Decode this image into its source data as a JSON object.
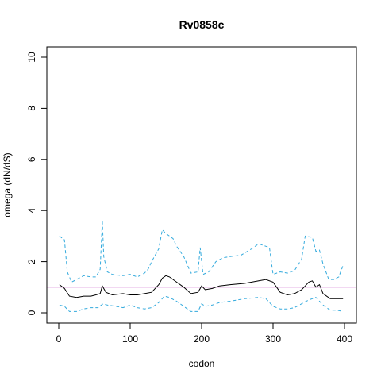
{
  "chart_data": {
    "type": "line",
    "title": "Rv0858c",
    "xlabel": "codon",
    "ylabel": "omega (dN/dS)",
    "xlim": [
      0,
      400
    ],
    "ylim": [
      0,
      10
    ],
    "xticks": [
      0,
      100,
      200,
      300,
      400
    ],
    "yticks": [
      0,
      2,
      4,
      6,
      8,
      10
    ],
    "reference_line": {
      "y": 1,
      "color": "#cc66cc"
    },
    "colors": {
      "estimate": "#000000",
      "bounds": "#33aadd"
    },
    "series": [
      {
        "role": "estimate",
        "style": "solid",
        "x": [
          1,
          8,
          15,
          25,
          35,
          45,
          52,
          58,
          61,
          66,
          75,
          90,
          100,
          110,
          120,
          130,
          140,
          145,
          150,
          155,
          160,
          165,
          175,
          185,
          195,
          200,
          205,
          215,
          225,
          240,
          260,
          280,
          290,
          300,
          310,
          320,
          330,
          340,
          350,
          355,
          360,
          365,
          370,
          380,
          390,
          398
        ],
        "y": [
          1.1,
          0.95,
          0.65,
          0.6,
          0.65,
          0.65,
          0.7,
          0.75,
          1.05,
          0.8,
          0.7,
          0.75,
          0.7,
          0.7,
          0.75,
          0.8,
          1.1,
          1.35,
          1.45,
          1.4,
          1.3,
          1.2,
          1.0,
          0.75,
          0.8,
          1.05,
          0.9,
          0.95,
          1.05,
          1.1,
          1.15,
          1.25,
          1.3,
          1.2,
          0.8,
          0.7,
          0.75,
          0.9,
          1.2,
          1.25,
          1.0,
          1.1,
          0.75,
          0.55,
          0.55,
          0.55
        ]
      },
      {
        "role": "upper",
        "style": "dashed",
        "x": [
          1,
          8,
          12,
          18,
          25,
          35,
          45,
          52,
          58,
          61,
          63,
          68,
          75,
          90,
          100,
          110,
          120,
          125,
          130,
          140,
          145,
          150,
          155,
          160,
          165,
          175,
          185,
          195,
          198,
          202,
          210,
          220,
          230,
          240,
          255,
          270,
          280,
          290,
          295,
          300,
          310,
          320,
          330,
          340,
          345,
          355,
          360,
          365,
          370,
          378,
          385,
          392,
          398
        ],
        "y": [
          3.0,
          2.85,
          1.6,
          1.2,
          1.3,
          1.45,
          1.4,
          1.4,
          1.7,
          3.6,
          2.2,
          1.6,
          1.5,
          1.45,
          1.5,
          1.4,
          1.55,
          1.7,
          2.0,
          2.5,
          3.25,
          3.1,
          3.0,
          2.9,
          2.6,
          2.2,
          1.55,
          1.6,
          2.55,
          1.5,
          1.6,
          2.0,
          2.15,
          2.2,
          2.25,
          2.5,
          2.7,
          2.6,
          2.55,
          1.5,
          1.6,
          1.55,
          1.65,
          2.1,
          3.0,
          2.95,
          2.4,
          2.45,
          1.9,
          1.3,
          1.3,
          1.4,
          1.85
        ]
      },
      {
        "role": "lower",
        "style": "dashed",
        "x": [
          1,
          8,
          15,
          25,
          35,
          45,
          55,
          62,
          68,
          80,
          90,
          100,
          110,
          120,
          130,
          140,
          148,
          155,
          165,
          175,
          185,
          195,
          200,
          205,
          215,
          225,
          240,
          260,
          280,
          290,
          300,
          310,
          320,
          330,
          340,
          350,
          360,
          370,
          380,
          390,
          398
        ],
        "y": [
          0.3,
          0.25,
          0.05,
          0.05,
          0.15,
          0.2,
          0.2,
          0.35,
          0.3,
          0.25,
          0.2,
          0.3,
          0.2,
          0.15,
          0.2,
          0.4,
          0.65,
          0.6,
          0.45,
          0.25,
          0.05,
          0.05,
          0.35,
          0.25,
          0.3,
          0.4,
          0.45,
          0.55,
          0.6,
          0.55,
          0.25,
          0.15,
          0.15,
          0.2,
          0.35,
          0.5,
          0.6,
          0.3,
          0.1,
          0.1,
          0.05
        ]
      }
    ]
  }
}
